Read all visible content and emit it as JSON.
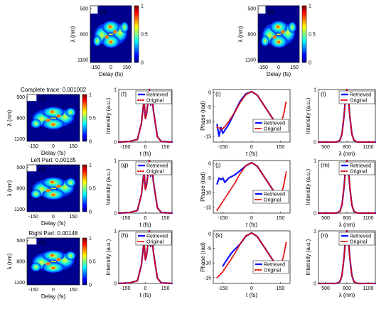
{
  "spectrograms": [
    {
      "id": "a",
      "label": "(a)",
      "title": "",
      "xlabel": "Delay (fs)",
      "ylabel": "λ (nm)",
      "yticks": [
        "500",
        "800",
        "1100"
      ],
      "xticks": [
        "-150",
        "0",
        "150"
      ],
      "cbar_ticks": [
        "1",
        "0.5",
        "0"
      ]
    },
    {
      "id": "b",
      "label": "(b)",
      "title": "",
      "xlabel": "Delay (fs)",
      "ylabel": "λ (nm)",
      "yticks": [
        "500",
        "800",
        "1100"
      ],
      "xticks": [
        "-150",
        "0",
        "150"
      ],
      "cbar_ticks": [
        "1",
        "0.5",
        "0"
      ]
    },
    {
      "id": "c",
      "label": "(c)",
      "title": "Complete trace: 0.001002",
      "xlabel": "Delay (fs)",
      "ylabel": "λ (nm)",
      "yticks": [
        "500",
        "800",
        "1100"
      ],
      "xticks": [
        "-150",
        "0",
        "150"
      ],
      "cbar_ticks": [
        "1",
        "0.5",
        "0"
      ]
    },
    {
      "id": "d",
      "label": "(d)",
      "title": "Left Part: 0.00135",
      "xlabel": "Delay (fs)",
      "ylabel": "λ (nm)",
      "yticks": [
        "500",
        "800",
        "1100"
      ],
      "xticks": [
        "-150",
        "0",
        "150"
      ],
      "cbar_ticks": [
        "1",
        "0.5",
        "0"
      ]
    },
    {
      "id": "e",
      "label": "(e)",
      "title": "Right Part: 0.00148",
      "xlabel": "Delay (fs)",
      "ylabel": "λ (nm)",
      "yticks": [
        "500",
        "800",
        "1100"
      ],
      "xticks": [
        "-150",
        "0",
        "150"
      ],
      "cbar_ticks": [
        "1",
        "0.5",
        "0"
      ]
    }
  ],
  "legend": {
    "retrieved": "Retrieved",
    "original": "Original"
  },
  "colors": {
    "retrieved": "#1010ff",
    "original": "#e00000"
  },
  "chart_data": [
    {
      "id": "f",
      "label": "(f)",
      "type": "line",
      "xlabel": "t (fs)",
      "ylabel": "Intensity (a.u.)",
      "xticks": [
        "-150",
        "0",
        "150"
      ],
      "yticks": [
        "0",
        "1"
      ],
      "xlim": [
        -200,
        200
      ],
      "ylim": [
        0,
        1
      ],
      "series": [
        {
          "name": "Retrieved",
          "x": [
            -200,
            -120,
            -60,
            -30,
            -10,
            0,
            10,
            30,
            40,
            50,
            60,
            90,
            120,
            200
          ],
          "values": [
            0,
            0.01,
            0.05,
            0.35,
            0.8,
            0.45,
            0.55,
            1,
            0.7,
            0.9,
            0.6,
            0.1,
            0.01,
            0
          ]
        },
        {
          "name": "Original",
          "x": [
            -200,
            -120,
            -60,
            -30,
            -10,
            0,
            10,
            30,
            40,
            50,
            60,
            90,
            120,
            200
          ],
          "values": [
            0,
            0.01,
            0.05,
            0.35,
            0.8,
            0.45,
            0.55,
            1,
            0.7,
            0.9,
            0.6,
            0.1,
            0.01,
            0
          ]
        }
      ]
    },
    {
      "id": "g",
      "label": "(g)",
      "type": "line",
      "xlabel": "t (fs)",
      "ylabel": "Intensity (a.u.)",
      "xticks": [
        "-150",
        "0",
        "150"
      ],
      "yticks": [
        "0",
        "1"
      ],
      "xlim": [
        -200,
        200
      ],
      "ylim": [
        0,
        1
      ],
      "series": [
        {
          "name": "Retrieved",
          "x": [
            -200,
            -120,
            -60,
            -30,
            -10,
            0,
            10,
            30,
            40,
            50,
            60,
            90,
            120,
            200
          ],
          "values": [
            0,
            0.01,
            0.05,
            0.35,
            0.8,
            0.45,
            0.55,
            1,
            0.7,
            0.9,
            0.6,
            0.1,
            0.01,
            0
          ]
        },
        {
          "name": "Original",
          "x": [
            -200,
            -120,
            -60,
            -30,
            -10,
            0,
            10,
            30,
            40,
            50,
            60,
            90,
            120,
            200
          ],
          "values": [
            0,
            0.01,
            0.05,
            0.35,
            0.8,
            0.45,
            0.55,
            1,
            0.7,
            0.9,
            0.6,
            0.1,
            0.01,
            0
          ]
        }
      ]
    },
    {
      "id": "h",
      "label": "(h)",
      "type": "line",
      "xlabel": "t (fs)",
      "ylabel": "Intensity (a.u.)",
      "xticks": [
        "-150",
        "0",
        "150"
      ],
      "yticks": [
        "0",
        "1"
      ],
      "xlim": [
        -200,
        200
      ],
      "ylim": [
        0,
        1
      ],
      "series": [
        {
          "name": "Retrieved",
          "x": [
            -200,
            -120,
            -60,
            -30,
            -10,
            0,
            10,
            30,
            40,
            50,
            60,
            90,
            120,
            200
          ],
          "values": [
            0,
            0.01,
            0.05,
            0.35,
            0.8,
            0.45,
            0.55,
            1,
            0.7,
            0.9,
            0.6,
            0.1,
            0.01,
            0
          ]
        },
        {
          "name": "Original",
          "x": [
            -200,
            -120,
            -60,
            -30,
            -10,
            0,
            10,
            30,
            40,
            50,
            60,
            90,
            120,
            200
          ],
          "values": [
            0,
            0.01,
            0.05,
            0.35,
            0.8,
            0.45,
            0.55,
            1,
            0.7,
            0.9,
            0.6,
            0.1,
            0.01,
            0
          ]
        }
      ]
    },
    {
      "id": "i",
      "label": "(i)",
      "type": "line",
      "xlabel": "t (fs)",
      "ylabel": "Phase (rad)",
      "xticks": [
        "-150",
        "0",
        "150"
      ],
      "yticks": [
        "0",
        "-5",
        "-10",
        "-15"
      ],
      "xlim": [
        -200,
        200
      ],
      "ylim": [
        -17,
        1
      ],
      "series": [
        {
          "name": "Retrieved",
          "x": [
            -180,
            -170,
            -160,
            -150,
            -140,
            -120,
            -90,
            -60,
            -30,
            0,
            30,
            60,
            90,
            120,
            150,
            160,
            170,
            180
          ],
          "values": [
            -11,
            -15,
            -12,
            -14,
            -13,
            -11,
            -7,
            -3,
            -0.5,
            0.3,
            -1,
            -4,
            -7,
            -10,
            -12,
            -11,
            -10,
            -12
          ]
        },
        {
          "name": "Original",
          "x": [
            -180,
            -150,
            -120,
            -90,
            -60,
            -30,
            0,
            30,
            60,
            90,
            120,
            150,
            165,
            180
          ],
          "values": [
            -12,
            -12.5,
            -10,
            -7,
            -3.5,
            -0.7,
            0.3,
            -1,
            -4,
            -7,
            -10,
            -11,
            -8,
            -3
          ]
        }
      ]
    },
    {
      "id": "j",
      "label": "(j)",
      "type": "line",
      "xlabel": "t (fs)",
      "ylabel": "Phase (rad)",
      "xticks": [
        "-150",
        "0",
        "150"
      ],
      "yticks": [
        "0",
        "-5",
        "-10",
        "-15"
      ],
      "xlim": [
        -200,
        200
      ],
      "ylim": [
        -17,
        1
      ],
      "series": [
        {
          "name": "Retrieved",
          "x": [
            -180,
            -170,
            -160,
            -150,
            -140,
            -120,
            -90,
            -60,
            -30,
            0,
            30,
            60,
            90,
            120,
            150,
            170,
            180
          ],
          "values": [
            -7,
            -5,
            -5.5,
            -5,
            -6.5,
            -5,
            -4,
            -2.5,
            -0.8,
            0.3,
            -1,
            -4,
            -7,
            -10,
            -12,
            -11,
            -11
          ]
        },
        {
          "name": "Original",
          "x": [
            -180,
            -150,
            -120,
            -90,
            -60,
            -30,
            0,
            30,
            60,
            90,
            120,
            150,
            165,
            180
          ],
          "values": [
            -16,
            -13,
            -10,
            -7,
            -3.5,
            -0.7,
            0.3,
            -1,
            -4,
            -7,
            -10,
            -11,
            -8,
            -3
          ]
        }
      ]
    },
    {
      "id": "k",
      "label": "(k)",
      "type": "line",
      "xlabel": "t (fs)",
      "ylabel": "Phase (rad)",
      "xticks": [
        "-150",
        "0",
        "150"
      ],
      "yticks": [
        "0",
        "-5",
        "-10",
        "-15"
      ],
      "xlim": [
        -200,
        200
      ],
      "ylim": [
        -17,
        1
      ],
      "series": [
        {
          "name": "Retrieved",
          "x": [
            -150,
            -130,
            -110,
            -90,
            -60,
            -30,
            0,
            30,
            60,
            90,
            120,
            140,
            160,
            180
          ],
          "values": [
            -11,
            -9,
            -7,
            -5.5,
            -3.5,
            -0.8,
            0.3,
            -1,
            -4,
            -7,
            -10,
            -10.5,
            -10,
            -10
          ]
        },
        {
          "name": "Original",
          "x": [
            -180,
            -150,
            -120,
            -90,
            -60,
            -30,
            0,
            30,
            60,
            90,
            120,
            150,
            165,
            180
          ],
          "values": [
            -15,
            -13,
            -10,
            -7,
            -3.5,
            -0.7,
            0.3,
            -1,
            -4,
            -7,
            -10,
            -11,
            -8,
            -3
          ]
        }
      ]
    },
    {
      "id": "l",
      "label": "(l)",
      "type": "line",
      "xlabel": "λ (nm)",
      "ylabel": "Intensity (a.u.)",
      "xticks": [
        "500",
        "800",
        "1100"
      ],
      "yticks": [
        "0",
        "1"
      ],
      "xlim": [
        400,
        1200
      ],
      "ylim": [
        0,
        1
      ],
      "series": [
        {
          "name": "Retrieved",
          "x": [
            400,
            650,
            700,
            730,
            760,
            780,
            800,
            820,
            840,
            870,
            900,
            950,
            1200
          ],
          "values": [
            0,
            0,
            0.03,
            0.15,
            0.5,
            0.85,
            1,
            0.85,
            0.5,
            0.15,
            0.03,
            0,
            0
          ]
        },
        {
          "name": "Original",
          "x": [
            400,
            650,
            700,
            730,
            760,
            780,
            800,
            820,
            840,
            870,
            900,
            950,
            1200
          ],
          "values": [
            0,
            0,
            0.03,
            0.15,
            0.5,
            0.85,
            1,
            0.85,
            0.5,
            0.15,
            0.03,
            0,
            0
          ]
        }
      ]
    },
    {
      "id": "m",
      "label": "(m)",
      "type": "line",
      "xlabel": "λ (nm)",
      "ylabel": "Intensity (a.u.)",
      "xticks": [
        "500",
        "800",
        "1100"
      ],
      "yticks": [
        "0",
        "1"
      ],
      "xlim": [
        400,
        1200
      ],
      "ylim": [
        0,
        1
      ],
      "series": [
        {
          "name": "Retrieved",
          "x": [
            400,
            650,
            700,
            730,
            760,
            780,
            800,
            820,
            840,
            870,
            900,
            950,
            1200
          ],
          "values": [
            0,
            0,
            0.03,
            0.15,
            0.5,
            0.85,
            1,
            0.85,
            0.5,
            0.15,
            0.03,
            0,
            0
          ]
        },
        {
          "name": "Original",
          "x": [
            400,
            650,
            700,
            730,
            760,
            780,
            800,
            820,
            840,
            870,
            900,
            950,
            1200
          ],
          "values": [
            0,
            0,
            0.03,
            0.15,
            0.5,
            0.85,
            1,
            0.85,
            0.5,
            0.15,
            0.03,
            0,
            0
          ]
        }
      ]
    },
    {
      "id": "n",
      "label": "(n)",
      "type": "line",
      "xlabel": "λ (nm)",
      "ylabel": "Intensity (a.u.)",
      "xticks": [
        "500",
        "800",
        "1100"
      ],
      "yticks": [
        "0",
        "1"
      ],
      "xlim": [
        400,
        1200
      ],
      "ylim": [
        0,
        1
      ],
      "series": [
        {
          "name": "Retrieved",
          "x": [
            400,
            650,
            700,
            730,
            760,
            780,
            800,
            820,
            840,
            870,
            900,
            950,
            1200
          ],
          "values": [
            0,
            0,
            0.03,
            0.15,
            0.5,
            0.85,
            1,
            0.85,
            0.5,
            0.15,
            0.03,
            0,
            0
          ]
        },
        {
          "name": "Original",
          "x": [
            400,
            650,
            700,
            730,
            760,
            780,
            800,
            820,
            840,
            870,
            900,
            950,
            1200
          ],
          "values": [
            0,
            0,
            0.03,
            0.15,
            0.5,
            0.85,
            1,
            0.85,
            0.5,
            0.15,
            0.03,
            0,
            0
          ]
        }
      ]
    }
  ]
}
